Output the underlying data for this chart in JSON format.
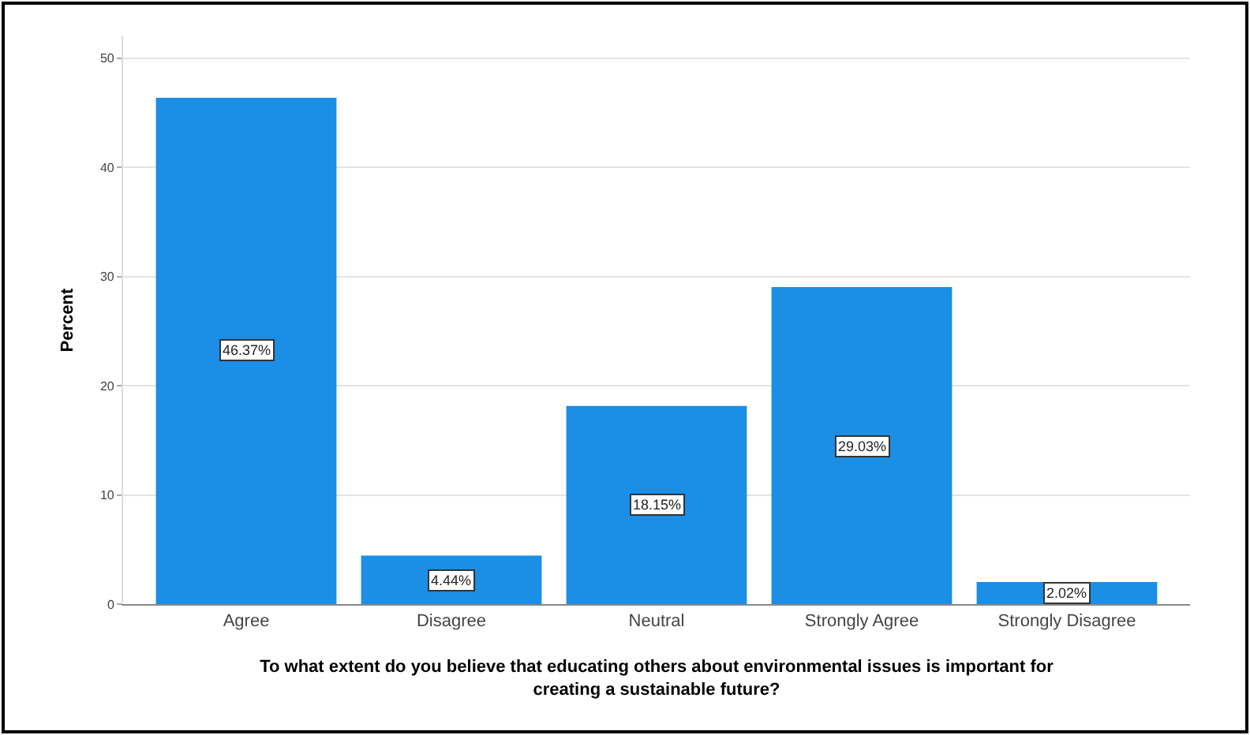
{
  "chart_data": {
    "type": "bar",
    "xlabel": "To what extent do you believe that educating others about environmental issues is important for creating a sustainable future?",
    "ylabel": "Percent",
    "categories": [
      "Agree",
      "Disagree",
      "Neutral",
      "Strongly Agree",
      "Strongly Disagree"
    ],
    "values": [
      46.37,
      4.44,
      18.15,
      29.03,
      2.02
    ],
    "value_labels": [
      "46.37%",
      "4.44%",
      "18.15%",
      "29.03%",
      "2.02%"
    ],
    "color": "#1b8ee5",
    "ylim": [
      0,
      52
    ],
    "yticks": [
      0,
      10,
      20,
      30,
      40,
      50
    ],
    "grid": "y"
  }
}
